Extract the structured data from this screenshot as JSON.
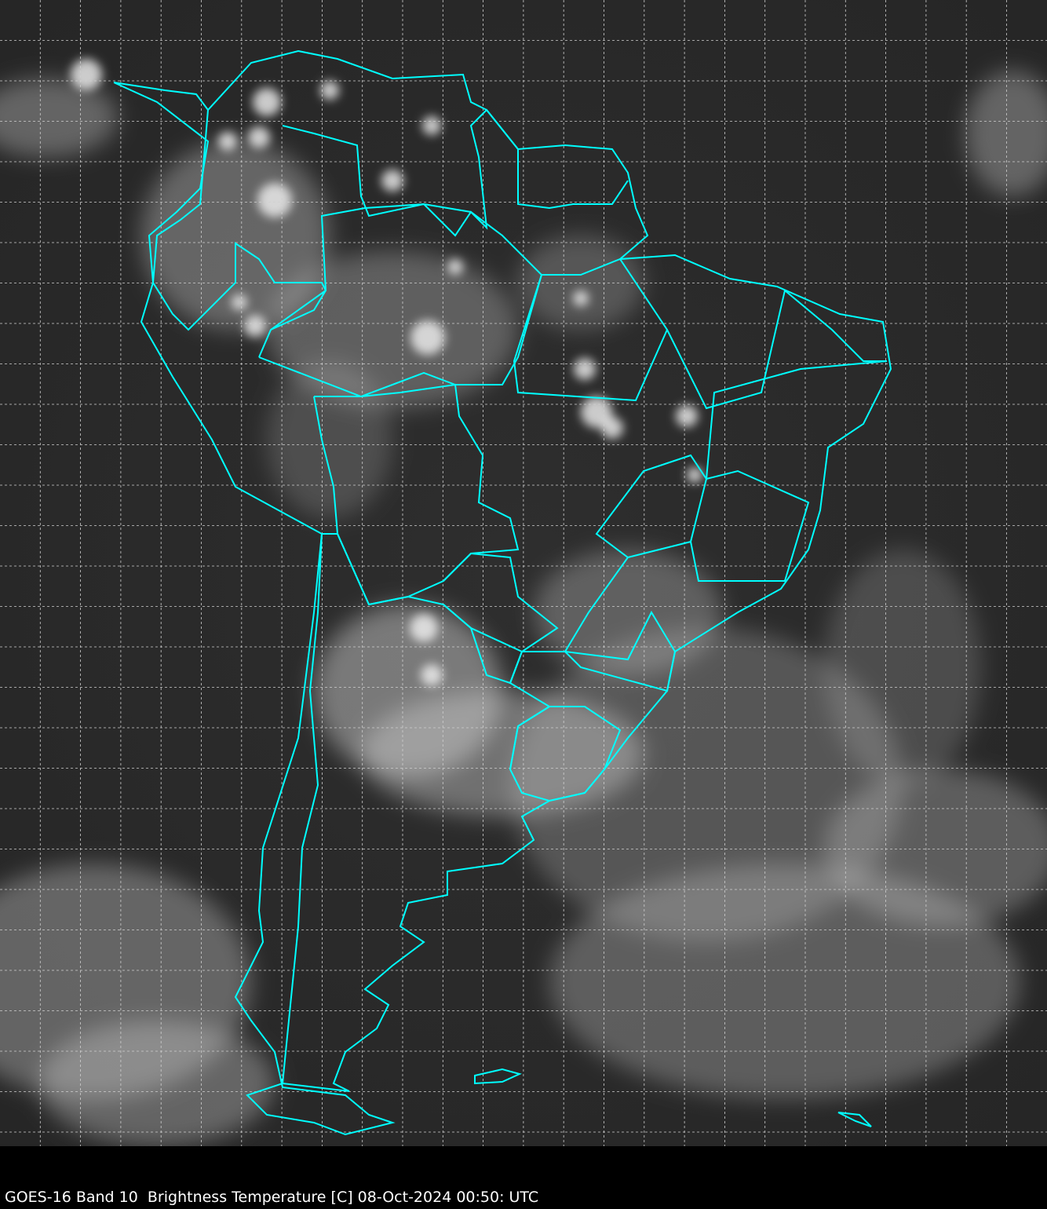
{
  "caption": "GOES-16 Band 10  Brightness Temperature [C] 08-Oct-2024 00:50: UTC",
  "colors": {
    "background": "#000000",
    "imagery_dark": "#2a2a2a",
    "imagery_cloud": "#e8e8e8",
    "borders": "#00ffff",
    "grid": "#d0d0d0"
  },
  "map": {
    "region": "South America",
    "product": "infrared brightness temperature imagery",
    "grid": "dashed lat/lon graticule",
    "borders": "country and state outlines"
  }
}
